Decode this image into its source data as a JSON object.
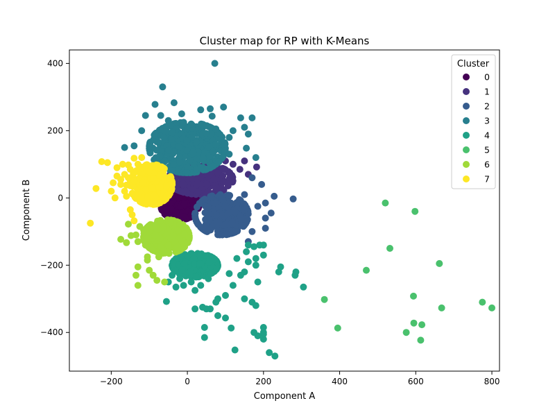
{
  "chart_data": {
    "type": "scatter",
    "title": "Cluster map for RP with K-Means",
    "xlabel": "Component A",
    "ylabel": "Component B",
    "xlim": [
      -310,
      820
    ],
    "ylim": [
      -515,
      440
    ],
    "xticks": [
      -200,
      0,
      200,
      400,
      600,
      800
    ],
    "yticks": [
      -400,
      -200,
      0,
      200,
      400
    ],
    "xtick_labels": [
      "−200",
      "0",
      "200",
      "400",
      "600",
      "800"
    ],
    "ytick_labels": [
      "−400",
      "−200",
      "0",
      "200",
      "400"
    ],
    "grid": false,
    "legend": {
      "title": "Cluster",
      "placement": "top-right"
    },
    "series": [
      {
        "name": "0",
        "color": "#440154",
        "core": {
          "cx": -20,
          "cy": -20,
          "rx": 50,
          "ry": 45,
          "n": 220
        },
        "points": [
          [
            -55,
            -35
          ],
          [
            15,
            10
          ],
          [
            -40,
            20
          ],
          [
            10,
            -50
          ],
          [
            30,
            -20
          ],
          [
            -10,
            -55
          ]
        ]
      },
      {
        "name": "1",
        "color": "#46327e",
        "core": {
          "cx": 35,
          "cy": 55,
          "rx": 85,
          "ry": 45,
          "n": 260
        },
        "points": [
          [
            182,
            92
          ],
          [
            150,
            110
          ],
          [
            160,
            70
          ],
          [
            138,
            85
          ],
          [
            120,
            100
          ],
          [
            110,
            45
          ],
          [
            100,
            110
          ]
        ]
      },
      {
        "name": "2",
        "color": "#365c8d",
        "core": {
          "cx": 90,
          "cy": -50,
          "rx": 70,
          "ry": 60,
          "n": 300
        },
        "points": [
          [
            278,
            -3
          ],
          [
            228,
            5
          ],
          [
            195,
            40
          ],
          [
            205,
            -15
          ],
          [
            205,
            -90
          ],
          [
            205,
            -60
          ],
          [
            170,
            -100
          ],
          [
            160,
            -130
          ],
          [
            185,
            -25
          ],
          [
            150,
            10
          ],
          [
            170,
            60
          ],
          [
            220,
            -45
          ]
        ]
      },
      {
        "name": "3",
        "color": "#277f8e",
        "core": {
          "cx": 0,
          "cy": 150,
          "rx": 100,
          "ry": 75,
          "n": 450
        },
        "points": [
          [
            72,
            400
          ],
          [
            -65,
            330
          ],
          [
            -85,
            278
          ],
          [
            -35,
            283
          ],
          [
            35,
            262
          ],
          [
            60,
            265
          ],
          [
            -110,
            245
          ],
          [
            -70,
            245
          ],
          [
            95,
            270
          ],
          [
            170,
            238
          ],
          [
            140,
            238
          ],
          [
            65,
            243
          ],
          [
            -165,
            150
          ],
          [
            -140,
            155
          ],
          [
            155,
            148
          ],
          [
            75,
            205
          ],
          [
            120,
            200
          ],
          [
            160,
            190
          ],
          [
            150,
            210
          ],
          [
            110,
            180
          ],
          [
            -120,
            200
          ],
          [
            -50,
            230
          ],
          [
            10,
            220
          ],
          [
            -15,
            250
          ],
          [
            110,
            130
          ],
          [
            180,
            120
          ]
        ]
      },
      {
        "name": "4",
        "color": "#1fa187",
        "core": {
          "cx": 20,
          "cy": -200,
          "rx": 60,
          "ry": 35,
          "n": 250
        },
        "points": [
          [
            230,
            -470
          ],
          [
            215,
            -460
          ],
          [
            125,
            -452
          ],
          [
            200,
            -385
          ],
          [
            200,
            -400
          ],
          [
            200,
            -420
          ],
          [
            200,
            -405
          ],
          [
            185,
            -410
          ],
          [
            175,
            -400
          ],
          [
            45,
            -385
          ],
          [
            45,
            -415
          ],
          [
            115,
            -387
          ],
          [
            100,
            -357
          ],
          [
            80,
            -350
          ],
          [
            75,
            -310
          ],
          [
            40,
            -325
          ],
          [
            50,
            -330
          ],
          [
            60,
            -330
          ],
          [
            20,
            -330
          ],
          [
            -55,
            -308
          ],
          [
            -30,
            -265
          ],
          [
            -10,
            -260
          ],
          [
            20,
            -275
          ],
          [
            150,
            -300
          ],
          [
            170,
            -310
          ],
          [
            180,
            -320
          ],
          [
            185,
            -250
          ],
          [
            150,
            -220
          ],
          [
            160,
            -190
          ],
          [
            180,
            -180
          ],
          [
            155,
            -160
          ],
          [
            130,
            -180
          ],
          [
            190,
            -140
          ],
          [
            180,
            -200
          ],
          [
            200,
            -170
          ],
          [
            240,
            -220
          ],
          [
            285,
            -220
          ],
          [
            305,
            -265
          ],
          [
            245,
            -205
          ],
          [
            283,
            -230
          ],
          [
            100,
            -290
          ],
          [
            80,
            -300
          ],
          [
            120,
            -260
          ],
          [
            140,
            -230
          ],
          [
            110,
            -225
          ],
          [
            160,
            -140
          ],
          [
            175,
            -145
          ],
          [
            200,
            -140
          ],
          [
            -40,
            -230
          ],
          [
            -20,
            -240
          ],
          [
            10,
            -250
          ],
          [
            35,
            -260
          ],
          [
            -50,
            -250
          ],
          [
            55,
            -240
          ]
        ]
      },
      {
        "name": "5",
        "color": "#4ac16d",
        "points": [
          [
            520,
            -15
          ],
          [
            598,
            -40
          ],
          [
            532,
            -150
          ],
          [
            470,
            -215
          ],
          [
            662,
            -195
          ],
          [
            360,
            -302
          ],
          [
            594,
            -292
          ],
          [
            668,
            -327
          ],
          [
            775,
            -310
          ],
          [
            800,
            -327
          ],
          [
            395,
            -387
          ],
          [
            595,
            -372
          ],
          [
            616,
            -377
          ],
          [
            575,
            -400
          ],
          [
            613,
            -423
          ]
        ]
      },
      {
        "name": "6",
        "color": "#a0da39",
        "core": {
          "cx": -55,
          "cy": -115,
          "rx": 60,
          "ry": 50,
          "n": 330
        },
        "points": [
          [
            -175,
            -123
          ],
          [
            -160,
            -133
          ],
          [
            -155,
            -78
          ],
          [
            -135,
            -110
          ],
          [
            -130,
            -130
          ],
          [
            -125,
            -85
          ],
          [
            -148,
            -112
          ],
          [
            -110,
            -140
          ],
          [
            -135,
            -230
          ],
          [
            -130,
            -260
          ],
          [
            -130,
            -205
          ],
          [
            -105,
            -185
          ],
          [
            -105,
            -175
          ],
          [
            -100,
            -215
          ],
          [
            -90,
            -230
          ],
          [
            -80,
            -245
          ],
          [
            -60,
            -250
          ],
          [
            -75,
            -175
          ],
          [
            -115,
            -95
          ]
        ]
      },
      {
        "name": "7",
        "color": "#fde725",
        "core": {
          "cx": -95,
          "cy": 40,
          "rx": 55,
          "ry": 60,
          "n": 300
        },
        "points": [
          [
            -255,
            -75
          ],
          [
            -240,
            28
          ],
          [
            -225,
            108
          ],
          [
            -210,
            105
          ],
          [
            -200,
            20
          ],
          [
            -190,
            0
          ],
          [
            -185,
            90
          ],
          [
            -175,
            55
          ],
          [
            -165,
            70
          ],
          [
            -160,
            38
          ],
          [
            -155,
            98
          ],
          [
            -140,
            118
          ],
          [
            -130,
            100
          ],
          [
            -120,
            120
          ],
          [
            -145,
            -50
          ],
          [
            -140,
            -68
          ],
          [
            -150,
            -35
          ],
          [
            -165,
            20
          ],
          [
            -175,
            40
          ],
          [
            -185,
            65
          ],
          [
            -195,
            45
          ],
          [
            -170,
            100
          ],
          [
            -155,
            60
          ],
          [
            -160,
            5
          ],
          [
            -150,
            85
          ]
        ]
      }
    ]
  }
}
